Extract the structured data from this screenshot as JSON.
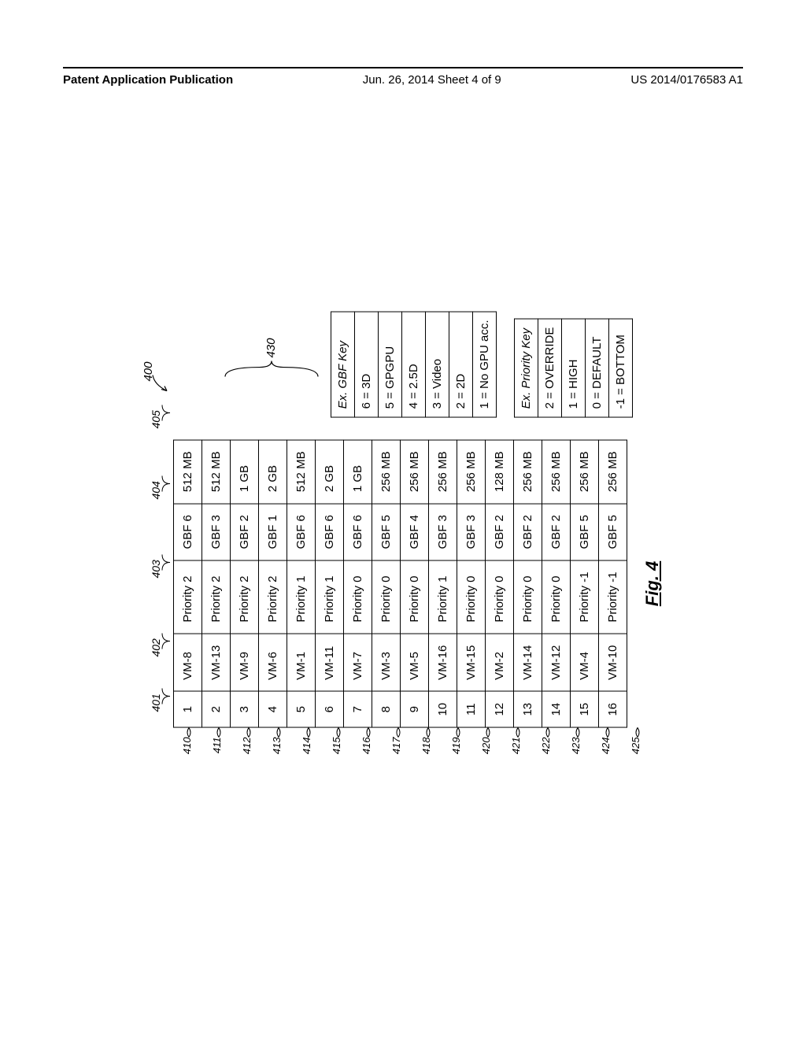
{
  "header": {
    "left": "Patent Application Publication",
    "mid": "Jun. 26, 2014  Sheet 4 of 9",
    "right": "US 2014/0176583 A1"
  },
  "column_labels": {
    "c1": "401",
    "c2": "402",
    "c3": "403",
    "c4": "404",
    "c5": "405"
  },
  "row_labels": [
    "410",
    "411",
    "412",
    "413",
    "414",
    "415",
    "416",
    "417",
    "418",
    "419",
    "420",
    "421",
    "422",
    "423",
    "424",
    "425"
  ],
  "rows": [
    {
      "idx": "1",
      "vm": "VM-8",
      "pri": "Priority 2",
      "gbf": "GBF 6",
      "mem": "512 MB"
    },
    {
      "idx": "2",
      "vm": "VM-13",
      "pri": "Priority 2",
      "gbf": "GBF 3",
      "mem": "512 MB"
    },
    {
      "idx": "3",
      "vm": "VM-9",
      "pri": "Priority 2",
      "gbf": "GBF 2",
      "mem": "1 GB"
    },
    {
      "idx": "4",
      "vm": "VM-6",
      "pri": "Priority 2",
      "gbf": "GBF 1",
      "mem": "2 GB"
    },
    {
      "idx": "5",
      "vm": "VM-1",
      "pri": "Priority 1",
      "gbf": "GBF 6",
      "mem": "512 MB"
    },
    {
      "idx": "6",
      "vm": "VM-11",
      "pri": "Priority 1",
      "gbf": "GBF 6",
      "mem": "2 GB"
    },
    {
      "idx": "7",
      "vm": "VM-7",
      "pri": "Priority 0",
      "gbf": "GBF 6",
      "mem": "1 GB"
    },
    {
      "idx": "8",
      "vm": "VM-3",
      "pri": "Priority 0",
      "gbf": "GBF 5",
      "mem": "256 MB"
    },
    {
      "idx": "9",
      "vm": "VM-5",
      "pri": "Priority 0",
      "gbf": "GBF 4",
      "mem": "256 MB"
    },
    {
      "idx": "10",
      "vm": "VM-16",
      "pri": "Priority 1",
      "gbf": "GBF 3",
      "mem": "256 MB"
    },
    {
      "idx": "11",
      "vm": "VM-15",
      "pri": "Priority 0",
      "gbf": "GBF 3",
      "mem": "256 MB"
    },
    {
      "idx": "12",
      "vm": "VM-2",
      "pri": "Priority 0",
      "gbf": "GBF 2",
      "mem": "128 MB"
    },
    {
      "idx": "13",
      "vm": "VM-14",
      "pri": "Priority 0",
      "gbf": "GBF 2",
      "mem": "256 MB"
    },
    {
      "idx": "14",
      "vm": "VM-12",
      "pri": "Priority 0",
      "gbf": "GBF 2",
      "mem": "256 MB"
    },
    {
      "idx": "15",
      "vm": "VM-4",
      "pri": "Priority -1",
      "gbf": "GBF 5",
      "mem": "256 MB"
    },
    {
      "idx": "16",
      "vm": "VM-10",
      "pri": "Priority -1",
      "gbf": "GBF 5",
      "mem": "256 MB"
    }
  ],
  "gbf_key": {
    "title": "Ex. GBF Key",
    "items": [
      "6 = 3D",
      "5 = GPGPU",
      "4 = 2.5D",
      "3 = Video",
      "2 = 2D",
      "1 = No GPU acc."
    ]
  },
  "priority_key": {
    "title": "Ex. Priority Key",
    "items": [
      "2 = OVERRIDE",
      "1 = HIGH",
      "0 = DEFAULT",
      "-1 = BOTTOM"
    ]
  },
  "callouts": {
    "overall": "400",
    "brace": "430"
  },
  "caption": "Fig. 4"
}
